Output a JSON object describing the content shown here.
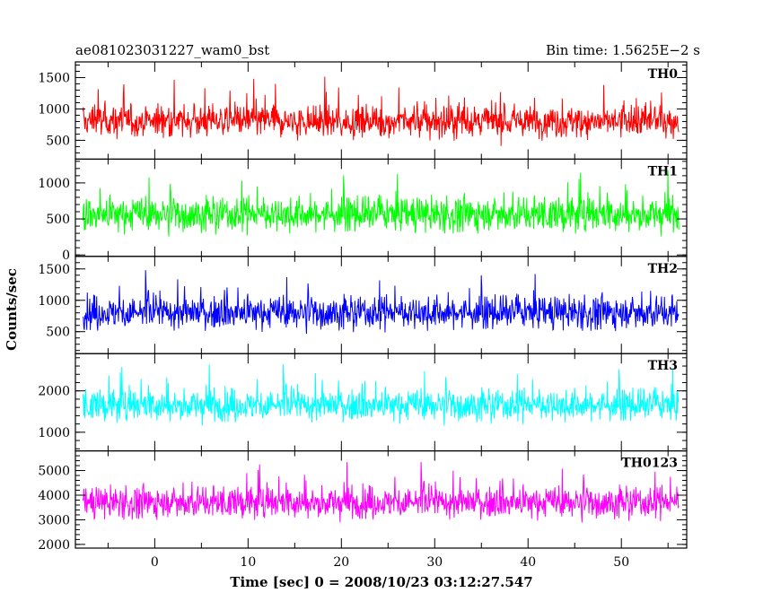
{
  "header": {
    "left_title": "ae081023031227_wam0_bst",
    "right_title": "Bin time: 1.5625E−2 s"
  },
  "chart_data": {
    "type": "line",
    "x_range": [
      -8.5,
      57.0
    ],
    "x_ticks": [
      0,
      10,
      20,
      30,
      40,
      50
    ],
    "xlabel": "Time [sec] 0 = 2008/10/23 03:12:27.547",
    "ylabel": "Counts/sec",
    "panels": [
      {
        "name": "TH0",
        "color": "#ff0000",
        "ylim": [
          200,
          1750
        ],
        "y_ticks": [
          500,
          1000,
          1500
        ],
        "mean": 800,
        "spread": 320,
        "x_start": -7.7,
        "x_end": 56.2
      },
      {
        "name": "TH1",
        "color": "#00ff00",
        "ylim": [
          -20,
          1330
        ],
        "y_ticks": [
          0,
          500,
          1000
        ],
        "mean": 560,
        "spread": 300,
        "x_start": -7.7,
        "x_end": 56.2
      },
      {
        "name": "TH2",
        "color": "#0000ff",
        "ylim": [
          150,
          1700
        ],
        "y_ticks": [
          500,
          1000,
          1500
        ],
        "mean": 800,
        "spread": 330,
        "x_start": -7.7,
        "x_end": 56.2
      },
      {
        "name": "TH3",
        "color": "#00ffff",
        "ylim": [
          550,
          2900
        ],
        "y_ticks": [
          1000,
          2000
        ],
        "mean": 1650,
        "spread": 480,
        "x_start": -7.7,
        "x_end": 56.2
      },
      {
        "name": "TH0123",
        "color": "#ff00ff",
        "ylim": [
          1850,
          5800
        ],
        "y_ticks": [
          2000,
          3000,
          4000,
          5000
        ],
        "mean": 3700,
        "spread": 800,
        "x_start": -7.7,
        "x_end": 56.2
      }
    ]
  }
}
